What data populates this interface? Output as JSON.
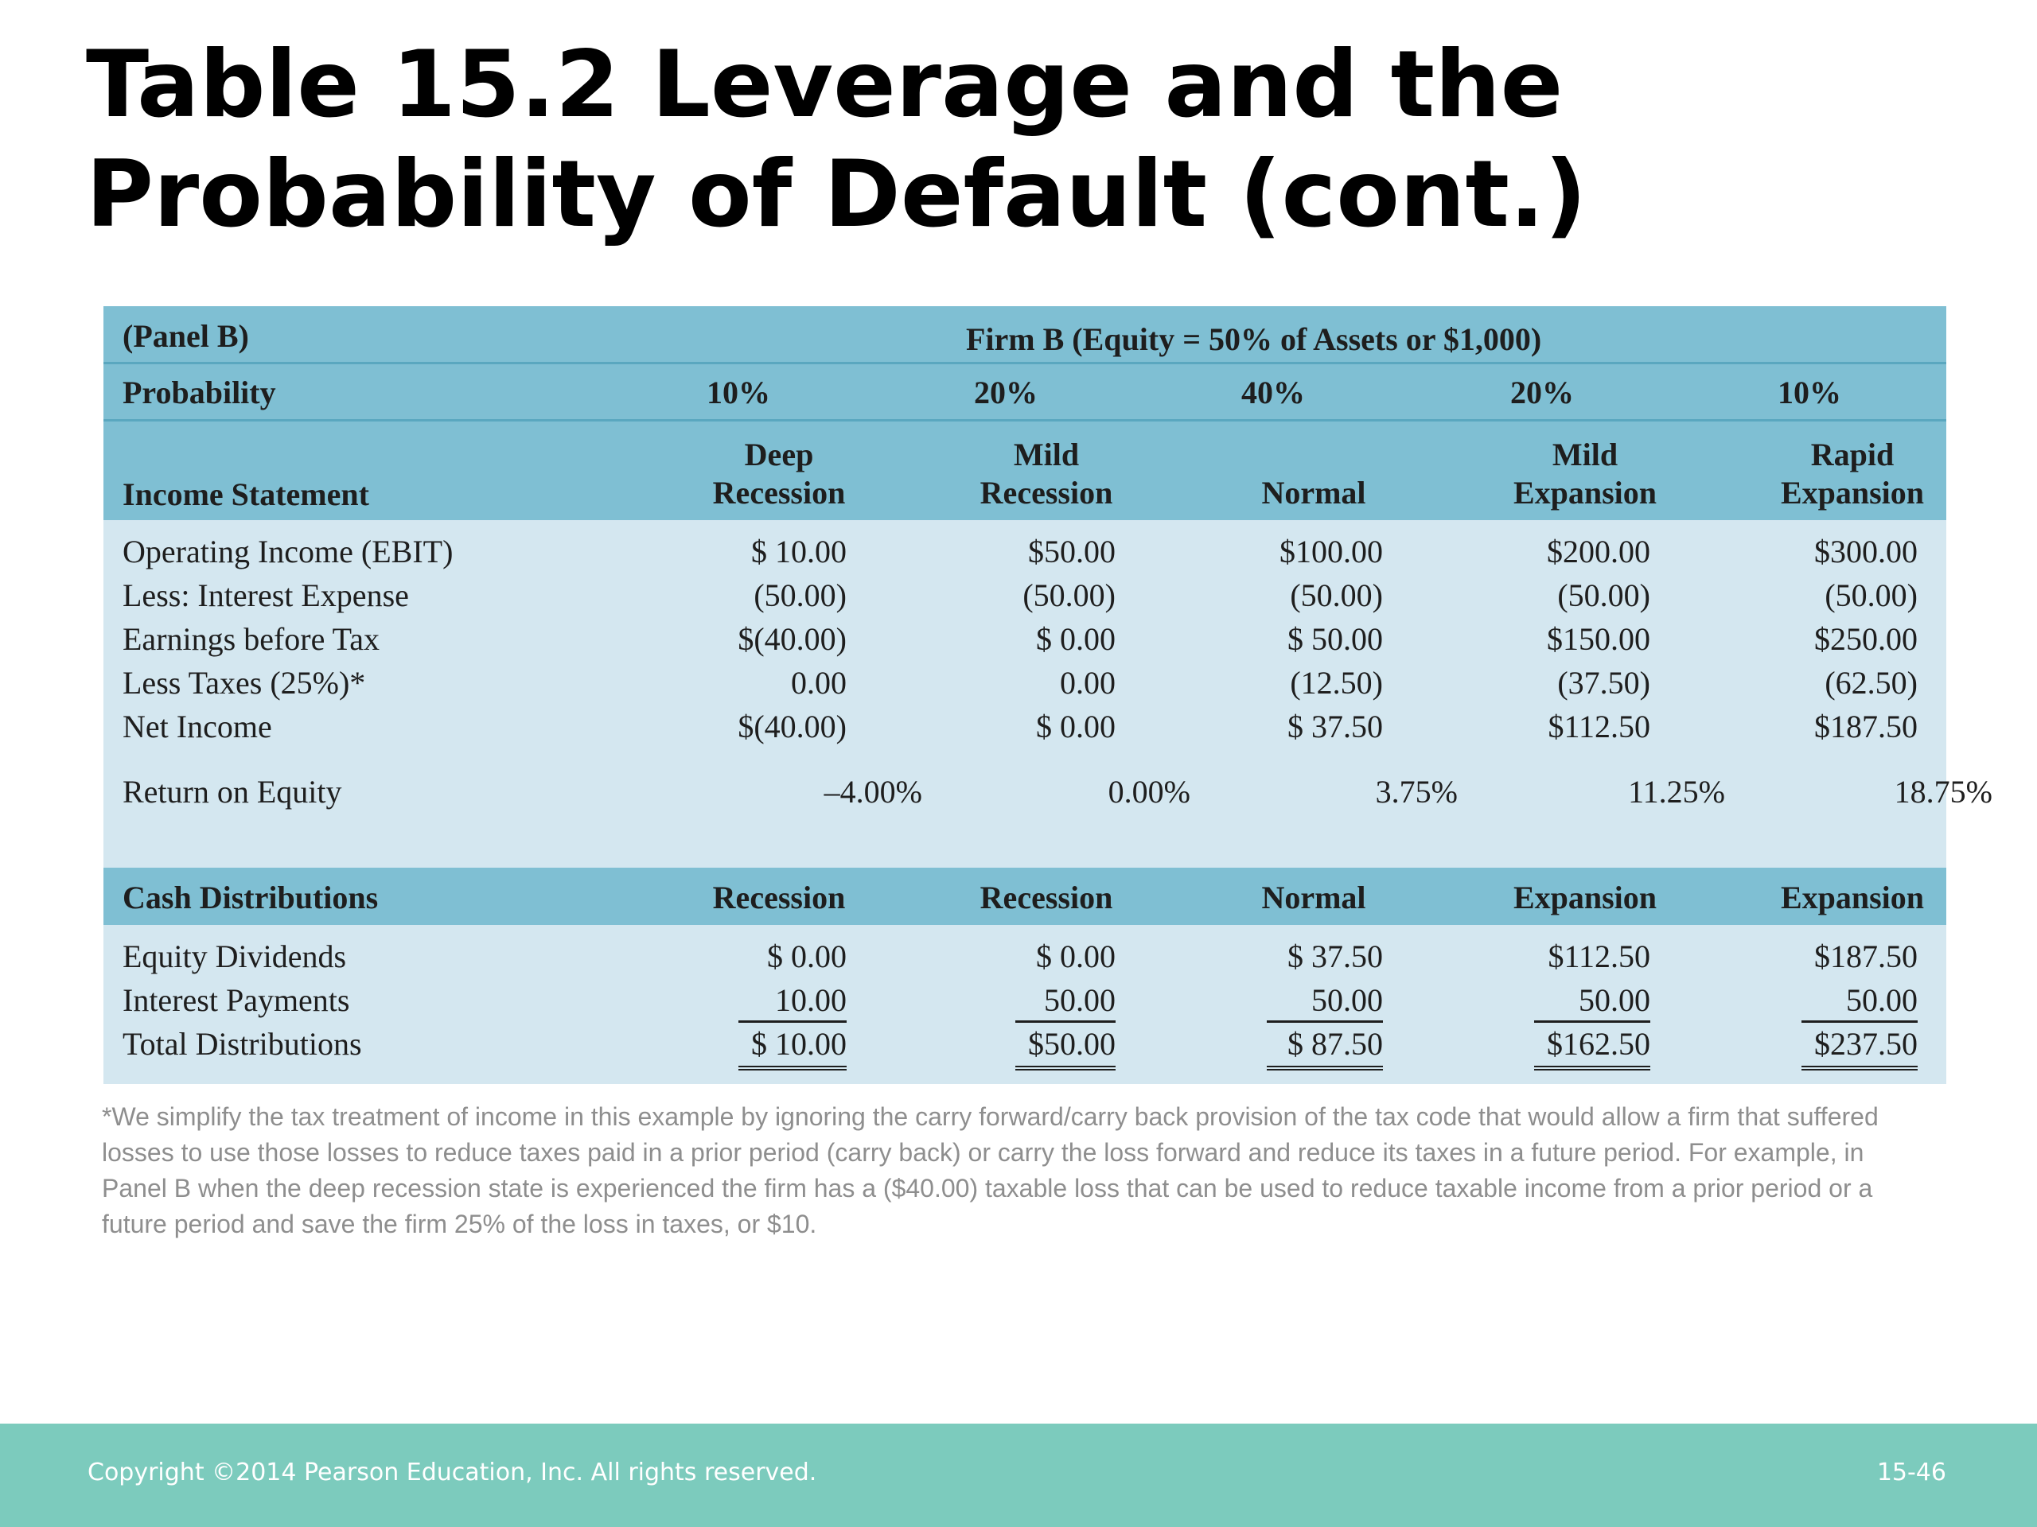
{
  "title": "Table 15.2 Leverage and the Probability of Default (cont.)",
  "table": {
    "panel_label": "(Panel B)",
    "firm_label": "Firm B (Equity = 50% of Assets or $1,000)",
    "probability_label": "Probability",
    "probabilities": [
      "10%",
      "20%",
      "40%",
      "20%",
      "10%"
    ],
    "income_statement_label": "Income Statement",
    "states_line1": [
      "Deep",
      "Mild",
      "",
      "Mild",
      "Rapid"
    ],
    "states_line2": [
      "Recession",
      "Recession",
      "Normal",
      "Expansion",
      "Expansion"
    ],
    "income_rows": [
      {
        "label": "Operating Income (EBIT)",
        "values": [
          "$ 10.00",
          "$50.00",
          "$100.00",
          "$200.00",
          "$300.00"
        ]
      },
      {
        "label": "Less: Interest Expense",
        "values": [
          "(50.00)",
          "(50.00)",
          "(50.00)",
          "(50.00)",
          "(50.00)"
        ]
      },
      {
        "label": "Earnings before Tax",
        "values": [
          "$(40.00)",
          "$ 0.00",
          "$ 50.00",
          "$150.00",
          "$250.00"
        ]
      },
      {
        "label": "Less Taxes (25%)*",
        "values": [
          "0.00",
          "0.00",
          "(12.50)",
          "(37.50)",
          "(62.50)"
        ]
      },
      {
        "label": "Net Income",
        "values": [
          "$(40.00)",
          "$ 0.00",
          "$ 37.50",
          "$112.50",
          "$187.50"
        ]
      }
    ],
    "roe": {
      "label": "Return on Equity",
      "values": [
        "–4.00%",
        "0.00%",
        "3.75%",
        "11.25%",
        "18.75%"
      ]
    },
    "cash_label": "Cash Distributions",
    "cash_headers": [
      "Recession",
      "Recession",
      "Normal",
      "Expansion",
      "Expansion"
    ],
    "cash_rows": [
      {
        "label": "Equity Dividends",
        "values": [
          "$  0.00",
          "$ 0.00",
          "$ 37.50",
          "$112.50",
          "$187.50"
        ]
      },
      {
        "label": "Interest Payments",
        "values": [
          "10.00",
          "50.00",
          "50.00",
          "50.00",
          "50.00"
        ]
      },
      {
        "label": "Total Distributions",
        "values": [
          "$ 10.00",
          "$50.00",
          "$ 87.50",
          "$162.50",
          "$237.50"
        ]
      }
    ]
  },
  "footnote": "*We simplify the tax treatment of income in this example by ignoring the carry forward/carry back provision of the tax code that would allow a firm that suffered losses to use those losses to reduce taxes paid in a prior period (carry back) or carry the loss forward and reduce its taxes in a future period. For example, in Panel B when the deep recession state is experienced the firm has a ($40.00) taxable loss that can be used to reduce taxable income from a prior period or a future period and save the firm 25% of the loss in taxes, or $10.",
  "footer": {
    "copyright": "Copyright ©2014 Pearson Education, Inc. All rights reserved.",
    "page": "15-46"
  }
}
